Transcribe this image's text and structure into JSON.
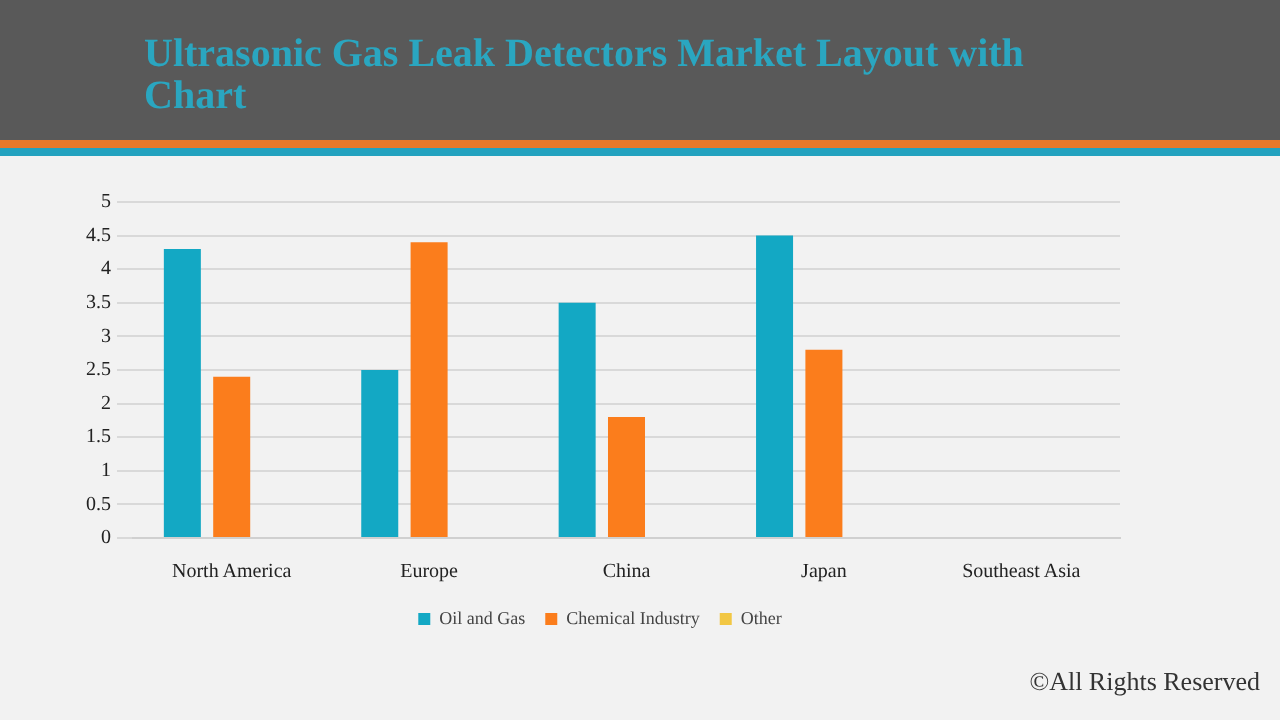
{
  "chart_data": {
    "type": "bar",
    "title": "Ultrasonic Gas Leak Detectors Market Layout with Chart",
    "categories": [
      "North America",
      "Europe",
      "China",
      "Japan",
      "Southeast Asia"
    ],
    "series": [
      {
        "name": "Oil and Gas",
        "color": "#13a8c4",
        "values": [
          4.3,
          2.5,
          3.5,
          4.5,
          null
        ]
      },
      {
        "name": "Chemical Industry",
        "color": "#fb7d1c",
        "values": [
          2.4,
          4.4,
          1.8,
          2.8,
          null
        ]
      },
      {
        "name": "Other",
        "color": "#f2c744",
        "values": [
          null,
          null,
          null,
          null,
          null
        ]
      }
    ],
    "ylim": [
      0,
      5
    ],
    "yticks": [
      0,
      0.5,
      1,
      1.5,
      2,
      2.5,
      3,
      3.5,
      4,
      4.5,
      5
    ],
    "grid": "y",
    "legend": "bottom",
    "annotations": [
      "©All Rights Reserved"
    ]
  }
}
